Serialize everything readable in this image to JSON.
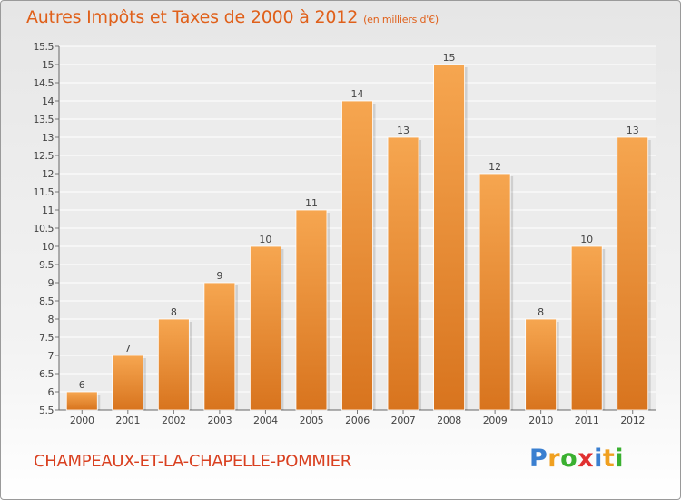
{
  "title": "Autres Impôts et Taxes de 2000 à 2012",
  "subtitle": "(en milliers d'€)",
  "commune": "CHAMPEAUX-ET-LA-CHAPELLE-POMMIER",
  "logo": {
    "letters": [
      "P",
      "r",
      "o",
      "x",
      "i",
      "t",
      "i"
    ],
    "colors": [
      "#3a7fd0",
      "#f0a020",
      "#3ab030",
      "#e03030",
      "#3a7fd0",
      "#f0a020",
      "#3ab030"
    ]
  },
  "colors": {
    "bar_top": "#f6a650",
    "bar_bottom": "#d8741e",
    "title": "#e0601a"
  },
  "chart_data": {
    "type": "bar",
    "title": "Autres Impôts et Taxes de 2000 à 2012",
    "categories": [
      "2000",
      "2001",
      "2002",
      "2003",
      "2004",
      "2005",
      "2006",
      "2007",
      "2008",
      "2009",
      "2010",
      "2011",
      "2012"
    ],
    "values": [
      6,
      7,
      8,
      9,
      10,
      11,
      14,
      13,
      15,
      12,
      8,
      10,
      13
    ],
    "ylim": [
      5.5,
      15.5
    ],
    "yticks": [
      "5.5",
      "6",
      "6.5",
      "7",
      "7.5",
      "8",
      "8.5",
      "9",
      "9.5",
      "10",
      "10.5",
      "11",
      "11.5",
      "12",
      "12.5",
      "13",
      "13.5",
      "14",
      "14.5",
      "15",
      "15.5"
    ],
    "grid": true
  }
}
